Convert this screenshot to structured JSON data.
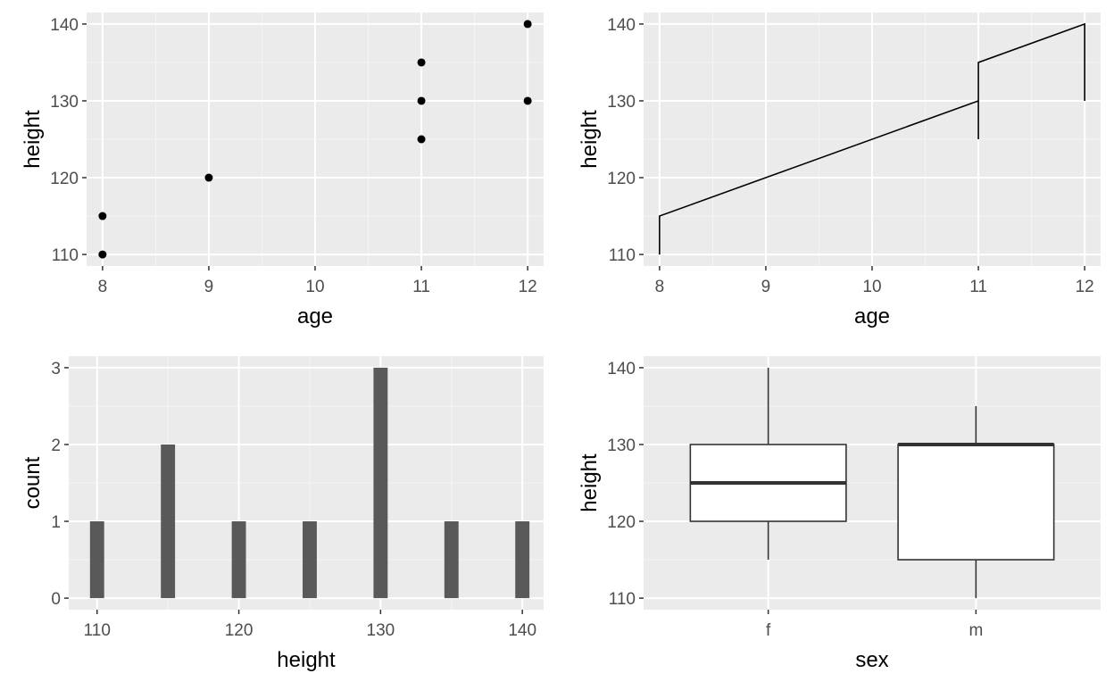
{
  "colors": {
    "panel": "#EBEBEB",
    "grid_major": "#FFFFFF",
    "grid_minor": "#F5F5F5",
    "tick_text": "#4D4D4D",
    "axis_title": "#000000",
    "mark": "#000000",
    "bar": "#595959",
    "box_line": "#333333",
    "box_fill": "#FFFFFF"
  },
  "chart_data": [
    {
      "type": "scatter",
      "xlabel": "age",
      "ylabel": "height",
      "xlim": [
        7.85,
        12.15
      ],
      "ylim": [
        108.5,
        141.5
      ],
      "x_ticks": [
        8,
        9,
        10,
        11,
        12
      ],
      "x_tick_labels": [
        "8",
        "9",
        "10",
        "11",
        "12"
      ],
      "y_ticks": [
        110,
        120,
        130,
        140
      ],
      "y_tick_labels": [
        "110",
        "120",
        "130",
        "140"
      ],
      "grid": true,
      "points": [
        {
          "x": 8,
          "y": 110
        },
        {
          "x": 8,
          "y": 115
        },
        {
          "x": 9,
          "y": 120
        },
        {
          "x": 11,
          "y": 125
        },
        {
          "x": 11,
          "y": 130
        },
        {
          "x": 11,
          "y": 135
        },
        {
          "x": 12,
          "y": 130
        },
        {
          "x": 12,
          "y": 140
        }
      ]
    },
    {
      "type": "line",
      "xlabel": "age",
      "ylabel": "height",
      "xlim": [
        7.85,
        12.15
      ],
      "ylim": [
        108.5,
        141.5
      ],
      "x_ticks": [
        8,
        9,
        10,
        11,
        12
      ],
      "x_tick_labels": [
        "8",
        "9",
        "10",
        "11",
        "12"
      ],
      "y_ticks": [
        110,
        120,
        130,
        140
      ],
      "y_tick_labels": [
        "110",
        "120",
        "130",
        "140"
      ],
      "grid": true,
      "points": [
        {
          "x": 8,
          "y": 110
        },
        {
          "x": 8,
          "y": 115
        },
        {
          "x": 9,
          "y": 120
        },
        {
          "x": 11,
          "y": 130
        },
        {
          "x": 11,
          "y": 125
        },
        {
          "x": 11,
          "y": 135
        },
        {
          "x": 12,
          "y": 140
        },
        {
          "x": 12,
          "y": 130
        }
      ]
    },
    {
      "type": "bar",
      "xlabel": "height",
      "ylabel": "count",
      "xlim": [
        108,
        141.5
      ],
      "ylim": [
        -0.15,
        3.15
      ],
      "x_ticks": [
        110,
        120,
        130,
        140
      ],
      "x_tick_labels": [
        "110",
        "120",
        "130",
        "140"
      ],
      "y_ticks": [
        0,
        1,
        2,
        3
      ],
      "y_tick_labels": [
        "0",
        "1",
        "2",
        "3"
      ],
      "grid": true,
      "bars": [
        {
          "x": 110,
          "count": 1
        },
        {
          "x": 115,
          "count": 2
        },
        {
          "x": 120,
          "count": 1
        },
        {
          "x": 125,
          "count": 1
        },
        {
          "x": 130,
          "count": 3
        },
        {
          "x": 135,
          "count": 1
        },
        {
          "x": 140,
          "count": 1
        }
      ],
      "bar_width": 1.0
    },
    {
      "type": "box",
      "xlabel": "sex",
      "ylabel": "height",
      "ylim": [
        108.5,
        141.5
      ],
      "categories": [
        "f",
        "m"
      ],
      "y_ticks": [
        110,
        120,
        130,
        140
      ],
      "y_tick_labels": [
        "110",
        "120",
        "130",
        "140"
      ],
      "grid": true,
      "boxes": [
        {
          "category": "f",
          "min": 115,
          "q1": 120,
          "median": 125,
          "q3": 130,
          "max": 140
        },
        {
          "category": "m",
          "min": 110,
          "q1": 115,
          "median": 130,
          "q3": 130,
          "max": 135
        }
      ]
    }
  ]
}
